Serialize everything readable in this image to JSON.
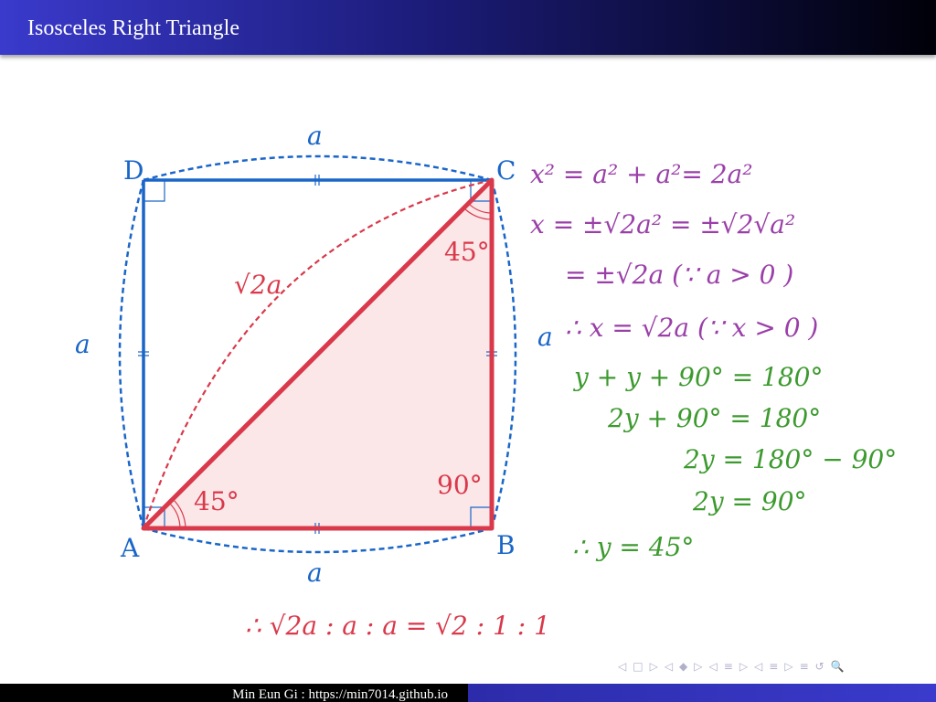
{
  "header": {
    "title": "Isosceles Right Triangle"
  },
  "diagram": {
    "vertex_a": "A",
    "vertex_b": "B",
    "vertex_c": "C",
    "vertex_d": "D",
    "side_top": "a",
    "side_bottom": "a",
    "side_left": "a",
    "side_right": "a",
    "diagonal_label": "√2a",
    "angle_a": "45°",
    "angle_c": "45°",
    "angle_b": "90°"
  },
  "equations_purple": [
    "x² = a² + a²= 2a²",
    "x = ±√2a² = ±√2√a²",
    "= ±√2a  (∵ a > 0 )",
    "∴ x = √2a  (∵ x > 0 )"
  ],
  "equations_green": [
    "y + y + 90° = 180°",
    "2y + 90° = 180°",
    "2y = 180° − 90°",
    "2y = 90°",
    "∴  y = 45°"
  ],
  "conclusion": "∴ √2a  :  a  :  a  = √2  :  1  :  1",
  "navigation": {
    "symbols": [
      "◁",
      "□",
      "▷",
      "◁",
      "◆",
      "▷",
      "◁",
      "≡",
      "▷",
      "◁",
      "≡",
      "▷",
      "≡",
      "↺",
      "🔍"
    ]
  },
  "footer": {
    "author": "Min Eun Gi : https://min7014.github.io"
  },
  "colors": {
    "blue": "#1a66c8",
    "red": "#d9394a",
    "purple": "#9a3fa8",
    "green": "#3c9a2e"
  }
}
